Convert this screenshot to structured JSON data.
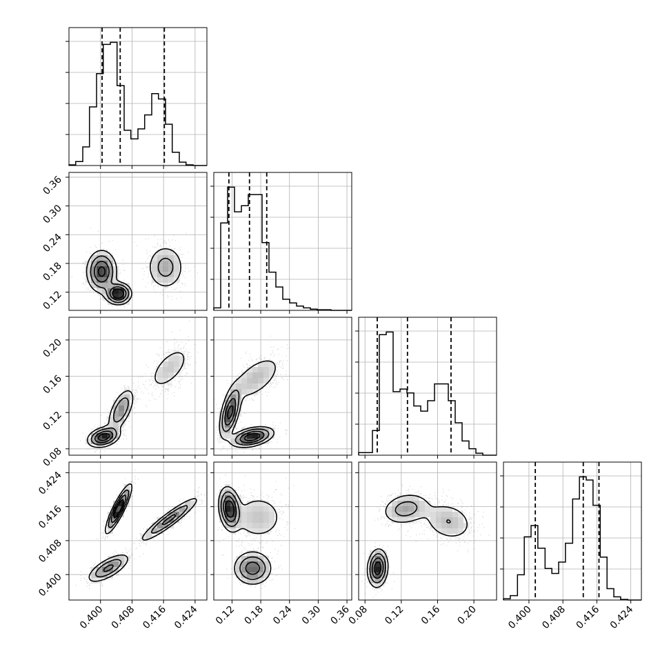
{
  "chart_data": {
    "type": "corner",
    "n_params": 4,
    "colors": {
      "line": "#000000",
      "grid": "#b0b0b0",
      "points": "#000000"
    },
    "grid": true,
    "params": [
      {
        "index": 0,
        "range": [
          0.392,
          0.427
        ],
        "ticks": [
          0.4,
          0.408,
          0.416,
          0.424
        ],
        "tick_labels": [
          "0.400",
          "0.408",
          "0.416",
          "0.424"
        ]
      },
      {
        "index": 1,
        "range": [
          0.082,
          0.37
        ],
        "ticks": [
          0.12,
          0.18,
          0.24,
          0.3,
          0.36
        ],
        "tick_labels": [
          "0.12",
          "0.18",
          "0.24",
          "0.30",
          "0.36"
        ]
      },
      {
        "index": 2,
        "range": [
          0.073,
          0.225
        ],
        "ticks": [
          0.08,
          0.12,
          0.16,
          0.2
        ],
        "tick_labels": [
          "0.08",
          "0.12",
          "0.16",
          "0.20"
        ]
      },
      {
        "index": 3,
        "range": [
          0.394,
          0.4265
        ],
        "ticks": [
          0.4,
          0.408,
          0.416,
          0.424
        ],
        "tick_labels": [
          "0.400",
          "0.408",
          "0.416",
          "0.424"
        ]
      }
    ],
    "marginals": [
      {
        "param": 0,
        "bin_edges": [
          0.392,
          0.3937,
          0.3955,
          0.3972,
          0.399,
          0.4007,
          0.4025,
          0.4042,
          0.406,
          0.4077,
          0.4095,
          0.4112,
          0.413,
          0.4147,
          0.4165,
          0.4182,
          0.42,
          0.4217,
          0.4235,
          0.4252,
          0.427
        ],
        "counts": [
          1,
          6,
          28,
          88,
          138,
          182,
          185,
          120,
          53,
          40,
          55,
          76,
          108,
          100,
          62,
          20,
          5,
          1,
          0,
          0
        ],
        "quantiles": [
          0.4004,
          0.405,
          0.4162
        ]
      },
      {
        "param": 1,
        "bin_edges": [
          0.082,
          0.0964,
          0.1108,
          0.1252,
          0.1396,
          0.154,
          0.1684,
          0.1828,
          0.1972,
          0.2116,
          0.226,
          0.2404,
          0.2548,
          0.2692,
          0.2836,
          0.298,
          0.3124,
          0.3268,
          0.3412,
          0.3556,
          0.37
        ],
        "counts": [
          4,
          142,
          200,
          160,
          170,
          188,
          188,
          110,
          62,
          38,
          18,
          12,
          7,
          4,
          2,
          1,
          1,
          0,
          0,
          0
        ],
        "quantiles": [
          0.1135,
          0.1565,
          0.1925
        ]
      },
      {
        "param": 2,
        "bin_edges": [
          0.073,
          0.0806,
          0.0882,
          0.0958,
          0.1034,
          0.111,
          0.1186,
          0.1262,
          0.1338,
          0.1414,
          0.149,
          0.1566,
          0.1642,
          0.1718,
          0.1794,
          0.187,
          0.1946,
          0.2022,
          0.2098,
          0.2174,
          0.225
        ],
        "counts": [
          4,
          4,
          38,
          186,
          190,
          98,
          102,
          96,
          76,
          68,
          84,
          110,
          110,
          84,
          50,
          22,
          10,
          3,
          0,
          0
        ],
        "quantiles": [
          0.0935,
          0.1268,
          0.1748
        ]
      },
      {
        "param": 3,
        "bin_edges": [
          0.394,
          0.3956,
          0.3973,
          0.3989,
          0.4005,
          0.4021,
          0.4038,
          0.4054,
          0.407,
          0.4086,
          0.4103,
          0.4119,
          0.4135,
          0.4151,
          0.4168,
          0.4184,
          0.42,
          0.4216,
          0.4233,
          0.4249,
          0.4265
        ],
        "counts": [
          2,
          7,
          40,
          100,
          118,
          82,
          50,
          42,
          60,
          90,
          160,
          195,
          190,
          150,
          68,
          18,
          5,
          1,
          0,
          0
        ],
        "quantiles": [
          0.4015,
          0.4128,
          0.4165
        ]
      }
    ],
    "pairs": [
      {
        "x_param": 0,
        "y_param": 1,
        "modes": [
          {
            "cx": 0.4003,
            "cy": 0.163,
            "sx": 0.0019,
            "sy": 0.022,
            "rho": 0.0,
            "w": 0.45
          },
          {
            "cx": 0.4045,
            "cy": 0.117,
            "sx": 0.0016,
            "sy": 0.011,
            "rho": 0.0,
            "w": 0.25
          },
          {
            "cx": 0.4165,
            "cy": 0.172,
            "sx": 0.0025,
            "sy": 0.025,
            "rho": 0.0,
            "w": 0.3
          }
        ]
      },
      {
        "x_param": 0,
        "y_param": 2,
        "modes": [
          {
            "cx": 0.4008,
            "cy": 0.093,
            "sx": 0.002,
            "sy": 0.0055,
            "rho": 0.3,
            "w": 0.38
          },
          {
            "cx": 0.4052,
            "cy": 0.123,
            "sx": 0.0017,
            "sy": 0.012,
            "rho": 0.6,
            "w": 0.32
          },
          {
            "cx": 0.4175,
            "cy": 0.169,
            "sx": 0.003,
            "sy": 0.014,
            "rho": 0.6,
            "w": 0.3
          }
        ]
      },
      {
        "x_param": 0,
        "y_param": 3,
        "modes": [
          {
            "cx": 0.4046,
            "cy": 0.4155,
            "sx": 0.0016,
            "sy": 0.0028,
            "rho": 0.88,
            "w": 0.35
          },
          {
            "cx": 0.402,
            "cy": 0.4015,
            "sx": 0.0027,
            "sy": 0.0017,
            "rho": 0.7,
            "w": 0.3
          },
          {
            "cx": 0.4175,
            "cy": 0.413,
            "sx": 0.0038,
            "sy": 0.0027,
            "rho": 0.93,
            "w": 0.35
          }
        ]
      },
      {
        "x_param": 1,
        "y_param": 2,
        "modes": [
          {
            "cx": 0.116,
            "cy": 0.12,
            "sx": 0.011,
            "sy": 0.014,
            "rho": 0.55,
            "w": 0.35
          },
          {
            "cx": 0.17,
            "cy": 0.158,
            "sx": 0.03,
            "sy": 0.014,
            "rho": 0.6,
            "w": 0.3
          },
          {
            "cx": 0.162,
            "cy": 0.093,
            "sx": 0.022,
            "sy": 0.0055,
            "rho": 0.4,
            "w": 0.35
          }
        ]
      },
      {
        "x_param": 1,
        "y_param": 3,
        "modes": [
          {
            "cx": 0.115,
            "cy": 0.4155,
            "sx": 0.011,
            "sy": 0.0025,
            "rho": -0.2,
            "w": 0.35
          },
          {
            "cx": 0.175,
            "cy": 0.4135,
            "sx": 0.03,
            "sy": 0.003,
            "rho": 0.0,
            "w": 0.3
          },
          {
            "cx": 0.163,
            "cy": 0.4015,
            "sx": 0.02,
            "sy": 0.002,
            "rho": 0.0,
            "w": 0.35
          }
        ]
      },
      {
        "x_param": 2,
        "y_param": 3,
        "modes": [
          {
            "cx": 0.094,
            "cy": 0.4015,
            "sx": 0.0055,
            "sy": 0.0022,
            "rho": 0.1,
            "w": 0.35
          },
          {
            "cx": 0.125,
            "cy": 0.4155,
            "sx": 0.014,
            "sy": 0.002,
            "rho": 0.2,
            "w": 0.33
          },
          {
            "cx": 0.172,
            "cy": 0.4125,
            "sx": 0.015,
            "sy": 0.0025,
            "rho": -0.2,
            "w": 0.32
          }
        ]
      }
    ]
  }
}
